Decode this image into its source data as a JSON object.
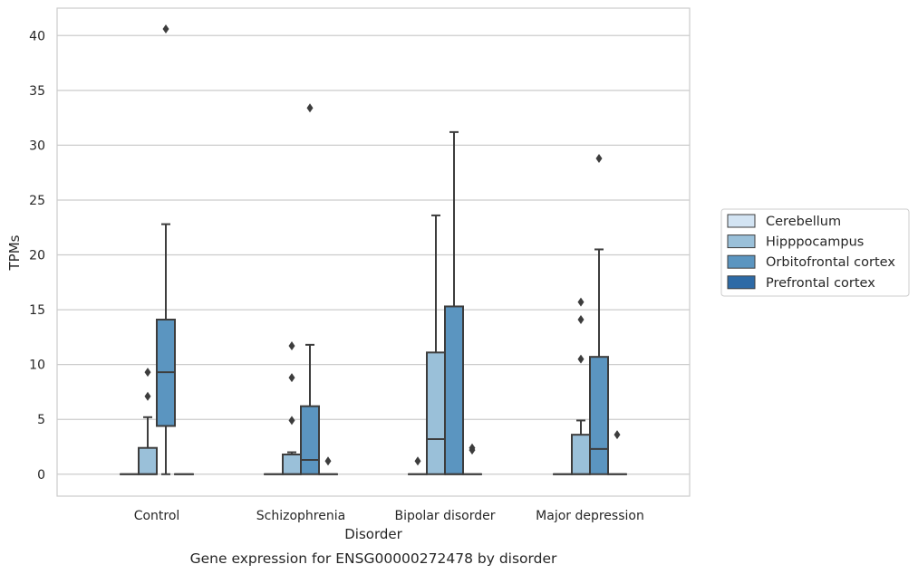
{
  "chart_data": {
    "type": "box",
    "title": "Gene expression for ENSG00000272478 by disorder",
    "xlabel": "Disorder",
    "ylabel": "TPMs",
    "ylim": [
      -2,
      42.5
    ],
    "yticks": [
      0,
      5,
      10,
      15,
      20,
      25,
      30,
      35,
      40
    ],
    "grid": "horizontal",
    "legend_position": "right",
    "categories": [
      "Control",
      "Schizophrenia",
      "Bipolar disorder",
      "Major depression"
    ],
    "series": [
      {
        "name": "Cerebellum",
        "color": "#d3e4f3",
        "boxes": [
          {
            "q1": 0,
            "median": 0,
            "q3": 0,
            "whisker_low": 0,
            "whisker_high": 0,
            "outliers": []
          },
          {
            "q1": 0,
            "median": 0,
            "q3": 0,
            "whisker_low": 0,
            "whisker_high": 0,
            "outliers": []
          },
          {
            "q1": 0,
            "median": 0,
            "q3": 0,
            "whisker_low": 0,
            "whisker_high": 0,
            "outliers": [
              1.2
            ]
          },
          {
            "q1": 0,
            "median": 0,
            "q3": 0,
            "whisker_low": 0,
            "whisker_high": 0,
            "outliers": []
          }
        ]
      },
      {
        "name": "Hipppocampus",
        "color": "#9ac0d9",
        "boxes": [
          {
            "q1": 0,
            "median": 0,
            "q3": 2.4,
            "whisker_low": 0,
            "whisker_high": 5.2,
            "outliers": [
              7.1,
              9.3
            ]
          },
          {
            "q1": 0,
            "median": 0,
            "q3": 1.8,
            "whisker_low": 0,
            "whisker_high": 2.0,
            "outliers": [
              4.9,
              8.8,
              11.7
            ]
          },
          {
            "q1": 0,
            "median": 3.2,
            "q3": 11.1,
            "whisker_low": 0,
            "whisker_high": 23.6,
            "outliers": []
          },
          {
            "q1": 0,
            "median": 0,
            "q3": 3.6,
            "whisker_low": 0,
            "whisker_high": 4.9,
            "outliers": [
              10.5,
              14.1,
              15.7
            ]
          }
        ]
      },
      {
        "name": "Orbitofrontal cortex",
        "color": "#5b95c0",
        "boxes": [
          {
            "q1": 4.4,
            "median": 9.3,
            "q3": 14.1,
            "whisker_low": 0,
            "whisker_high": 22.8,
            "outliers": [
              40.6
            ]
          },
          {
            "q1": 0,
            "median": 1.3,
            "q3": 6.2,
            "whisker_low": 0,
            "whisker_high": 11.8,
            "outliers": [
              33.4
            ]
          },
          {
            "q1": 0,
            "median": 0,
            "q3": 15.3,
            "whisker_low": 0,
            "whisker_high": 31.2,
            "outliers": []
          },
          {
            "q1": 0,
            "median": 2.3,
            "q3": 10.7,
            "whisker_low": 0,
            "whisker_high": 20.5,
            "outliers": [
              28.8
            ]
          }
        ]
      },
      {
        "name": "Prefrontal cortex",
        "color": "#2d6aa6",
        "boxes": [
          {
            "q1": 0,
            "median": 0,
            "q3": 0,
            "whisker_low": 0,
            "whisker_high": 0,
            "outliers": []
          },
          {
            "q1": 0,
            "median": 0,
            "q3": 0,
            "whisker_low": 0,
            "whisker_high": 0,
            "outliers": [
              1.2
            ]
          },
          {
            "q1": 0,
            "median": 0,
            "q3": 0,
            "whisker_low": 0,
            "whisker_high": 0,
            "outliers": [
              2.2,
              2.4
            ]
          },
          {
            "q1": 0,
            "median": 0,
            "q3": 0,
            "whisker_low": 0,
            "whisker_high": 0,
            "outliers": [
              3.6
            ]
          }
        ]
      }
    ]
  }
}
